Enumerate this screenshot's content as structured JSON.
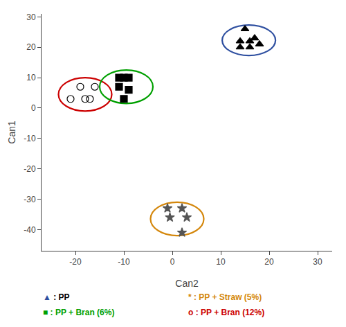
{
  "chart_data": {
    "type": "scatter",
    "xlabel": "Can2",
    "ylabel": "Can1",
    "xlim": [
      -27,
      33
    ],
    "ylim": [
      -47,
      31
    ],
    "xticks": [
      -20,
      -10,
      0,
      10,
      20,
      30
    ],
    "yticks": [
      -40,
      -30,
      -20,
      -10,
      0,
      10,
      20,
      30
    ],
    "grid": false,
    "series": [
      {
        "x": [
          15,
          17,
          14,
          16,
          18,
          14,
          16
        ],
        "values": [
          26,
          23,
          22,
          22,
          21,
          20,
          20
        ],
        "marker": "triangle-up",
        "color": "#000000",
        "ellipse_center": [
          15.8,
          22.3
        ],
        "ellipse_radii": [
          5.5,
          5.0
        ],
        "ellipse_color": "#2e4fa0"
      },
      {
        "x": [
          -19,
          -16,
          -21,
          -18,
          -17
        ],
        "values": [
          7,
          7,
          3,
          3,
          3
        ],
        "marker": "circle-open",
        "color": "#000000",
        "ellipse_center": [
          -18.0,
          4.5
        ],
        "ellipse_radii": [
          5.5,
          5.5
        ],
        "ellipse_color": "#cc0000"
      },
      {
        "x": [
          -11,
          -9,
          -10,
          -11,
          -9,
          -10
        ],
        "values": [
          10,
          10,
          10,
          7,
          6,
          3
        ],
        "marker": "square",
        "color": "#000000",
        "ellipse_center": [
          -9.5,
          7.0
        ],
        "ellipse_radii": [
          5.5,
          5.5
        ],
        "ellipse_color": "#00a000"
      },
      {
        "x": [
          -1,
          2,
          -0.5,
          3,
          2
        ],
        "values": [
          -33,
          -33,
          -36,
          -36,
          -41
        ],
        "marker": "star",
        "color": "#555555",
        "ellipse_center": [
          1.0,
          -36.5
        ],
        "ellipse_radii": [
          5.5,
          5.5
        ],
        "ellipse_color": "#d4870c"
      }
    ],
    "annotations": [
      {
        "symbol": "▲",
        "symbol_color": "#2e4fa0",
        "text": ": PP",
        "color": "#000000"
      },
      {
        "symbol": "*",
        "symbol_color": "#d4870c",
        "text": ": PP + Straw (5%)",
        "color": "#d4870c"
      },
      {
        "symbol": "■",
        "symbol_color": "#00a000",
        "text": ": PP + Bran (6%)",
        "color": "#00a000"
      },
      {
        "symbol": "o",
        "symbol_color": "#cc0000",
        "text": ": PP + Bran (12%)",
        "color": "#cc0000"
      }
    ]
  }
}
